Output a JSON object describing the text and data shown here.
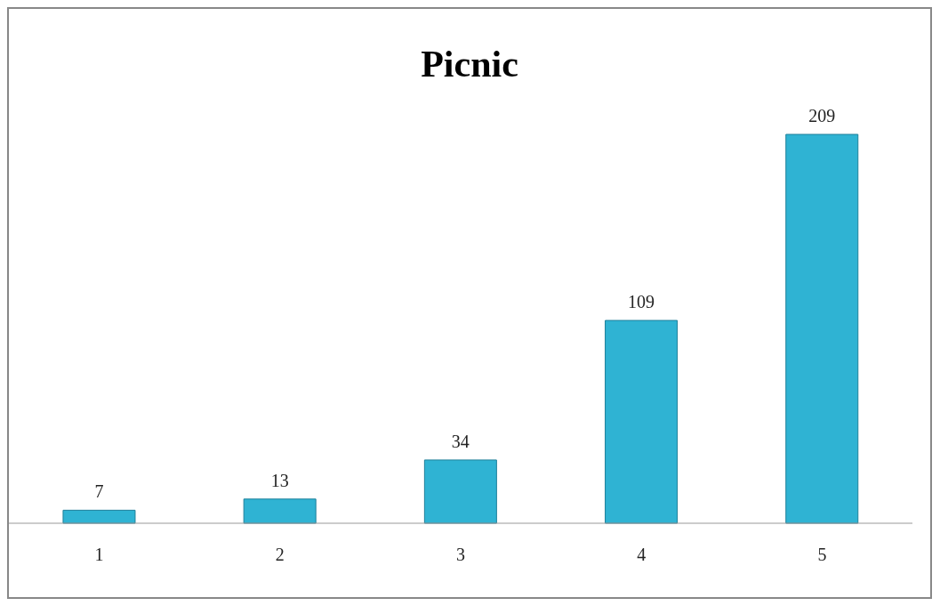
{
  "chart_data": {
    "type": "bar",
    "title": "Picnic",
    "categories": [
      "1",
      "2",
      "3",
      "4",
      "5"
    ],
    "values": [
      7,
      13,
      34,
      109,
      209
    ],
    "color": "#2fb3d3",
    "data_labels": true
  }
}
